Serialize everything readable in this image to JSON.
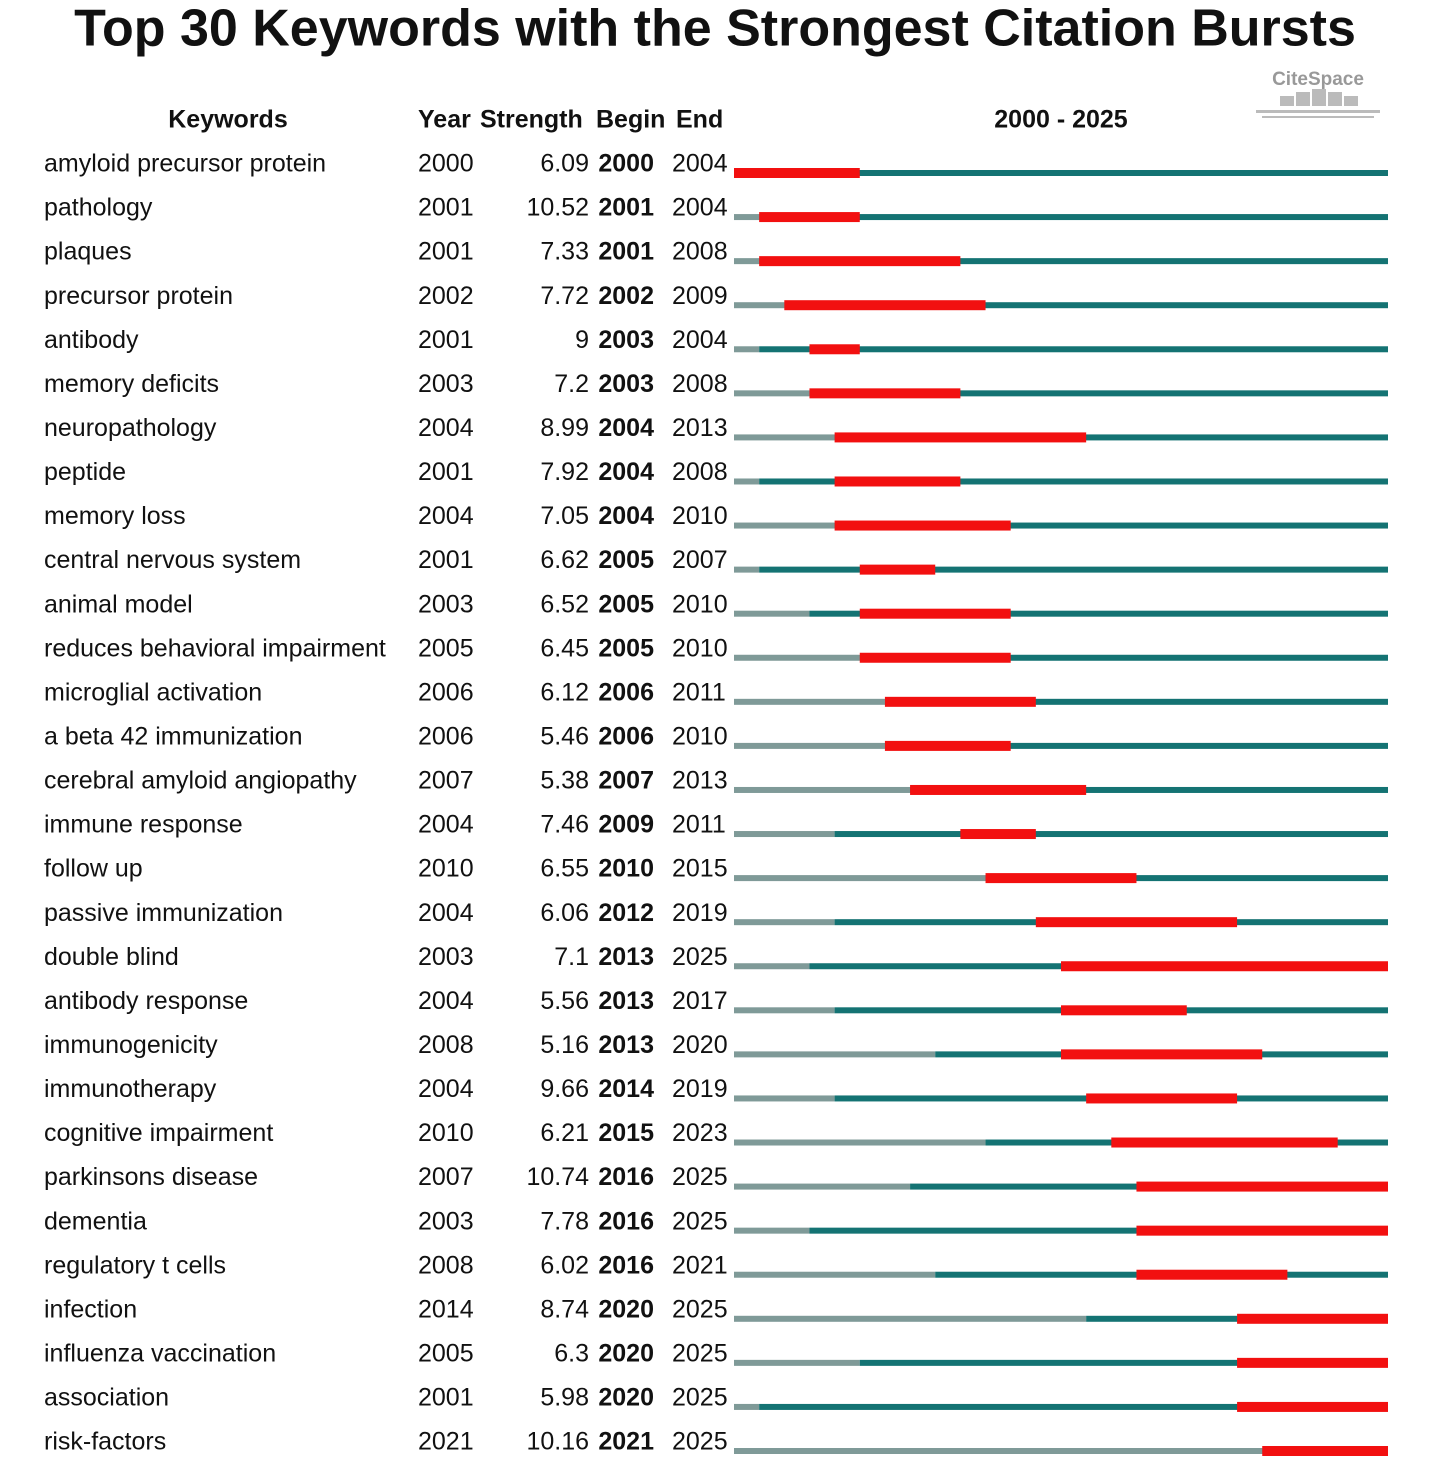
{
  "title": "Top 30 Keywords with the Strongest Citation Bursts",
  "logo": "CiteSpace",
  "header": {
    "keyword": "Keywords",
    "year": "Year",
    "strength": "Strength",
    "begin": "Begin",
    "end": "End",
    "range_label": "2000 - 2025"
  },
  "range": [
    2000,
    2025
  ],
  "rows": [
    {
      "keyword": "amyloid precursor protein",
      "year": 2000,
      "strength": 6.09,
      "begin": 2000,
      "end": 2004
    },
    {
      "keyword": "pathology",
      "year": 2001,
      "strength": 10.52,
      "begin": 2001,
      "end": 2004
    },
    {
      "keyword": "plaques",
      "year": 2001,
      "strength": 7.33,
      "begin": 2001,
      "end": 2008
    },
    {
      "keyword": "precursor protein",
      "year": 2002,
      "strength": 7.72,
      "begin": 2002,
      "end": 2009
    },
    {
      "keyword": "antibody",
      "year": 2001,
      "strength": 9,
      "begin": 2003,
      "end": 2004
    },
    {
      "keyword": "memory deficits",
      "year": 2003,
      "strength": 7.2,
      "begin": 2003,
      "end": 2008
    },
    {
      "keyword": "neuropathology",
      "year": 2004,
      "strength": 8.99,
      "begin": 2004,
      "end": 2013
    },
    {
      "keyword": "peptide",
      "year": 2001,
      "strength": 7.92,
      "begin": 2004,
      "end": 2008
    },
    {
      "keyword": "memory loss",
      "year": 2004,
      "strength": 7.05,
      "begin": 2004,
      "end": 2010
    },
    {
      "keyword": "central nervous system",
      "year": 2001,
      "strength": 6.62,
      "begin": 2005,
      "end": 2007
    },
    {
      "keyword": "animal model",
      "year": 2003,
      "strength": 6.52,
      "begin": 2005,
      "end": 2010
    },
    {
      "keyword": "reduces behavioral impairment",
      "year": 2005,
      "strength": 6.45,
      "begin": 2005,
      "end": 2010
    },
    {
      "keyword": "microglial activation",
      "year": 2006,
      "strength": 6.12,
      "begin": 2006,
      "end": 2011
    },
    {
      "keyword": "a beta 42 immunization",
      "year": 2006,
      "strength": 5.46,
      "begin": 2006,
      "end": 2010
    },
    {
      "keyword": "cerebral amyloid angiopathy",
      "year": 2007,
      "strength": 5.38,
      "begin": 2007,
      "end": 2013
    },
    {
      "keyword": "immune response",
      "year": 2004,
      "strength": 7.46,
      "begin": 2009,
      "end": 2011
    },
    {
      "keyword": "follow up",
      "year": 2010,
      "strength": 6.55,
      "begin": 2010,
      "end": 2015
    },
    {
      "keyword": "passive immunization",
      "year": 2004,
      "strength": 6.06,
      "begin": 2012,
      "end": 2019
    },
    {
      "keyword": "double blind",
      "year": 2003,
      "strength": 7.1,
      "begin": 2013,
      "end": 2025
    },
    {
      "keyword": "antibody response",
      "year": 2004,
      "strength": 5.56,
      "begin": 2013,
      "end": 2017
    },
    {
      "keyword": "immunogenicity",
      "year": 2008,
      "strength": 5.16,
      "begin": 2013,
      "end": 2020
    },
    {
      "keyword": "immunotherapy",
      "year": 2004,
      "strength": 9.66,
      "begin": 2014,
      "end": 2019
    },
    {
      "keyword": "cognitive impairment",
      "year": 2010,
      "strength": 6.21,
      "begin": 2015,
      "end": 2023
    },
    {
      "keyword": "parkinsons disease",
      "year": 2007,
      "strength": 10.74,
      "begin": 2016,
      "end": 2025
    },
    {
      "keyword": "dementia",
      "year": 2003,
      "strength": 7.78,
      "begin": 2016,
      "end": 2025
    },
    {
      "keyword": "regulatory t cells",
      "year": 2008,
      "strength": 6.02,
      "begin": 2016,
      "end": 2021
    },
    {
      "keyword": "infection",
      "year": 2014,
      "strength": 8.74,
      "begin": 2020,
      "end": 2025
    },
    {
      "keyword": "influenza vaccination",
      "year": 2005,
      "strength": 6.3,
      "begin": 2020,
      "end": 2025
    },
    {
      "keyword": "association",
      "year": 2001,
      "strength": 5.98,
      "begin": 2020,
      "end": 2025
    },
    {
      "keyword": "risk-factors",
      "year": 2021,
      "strength": 10.16,
      "begin": 2021,
      "end": 2025
    }
  ]
}
